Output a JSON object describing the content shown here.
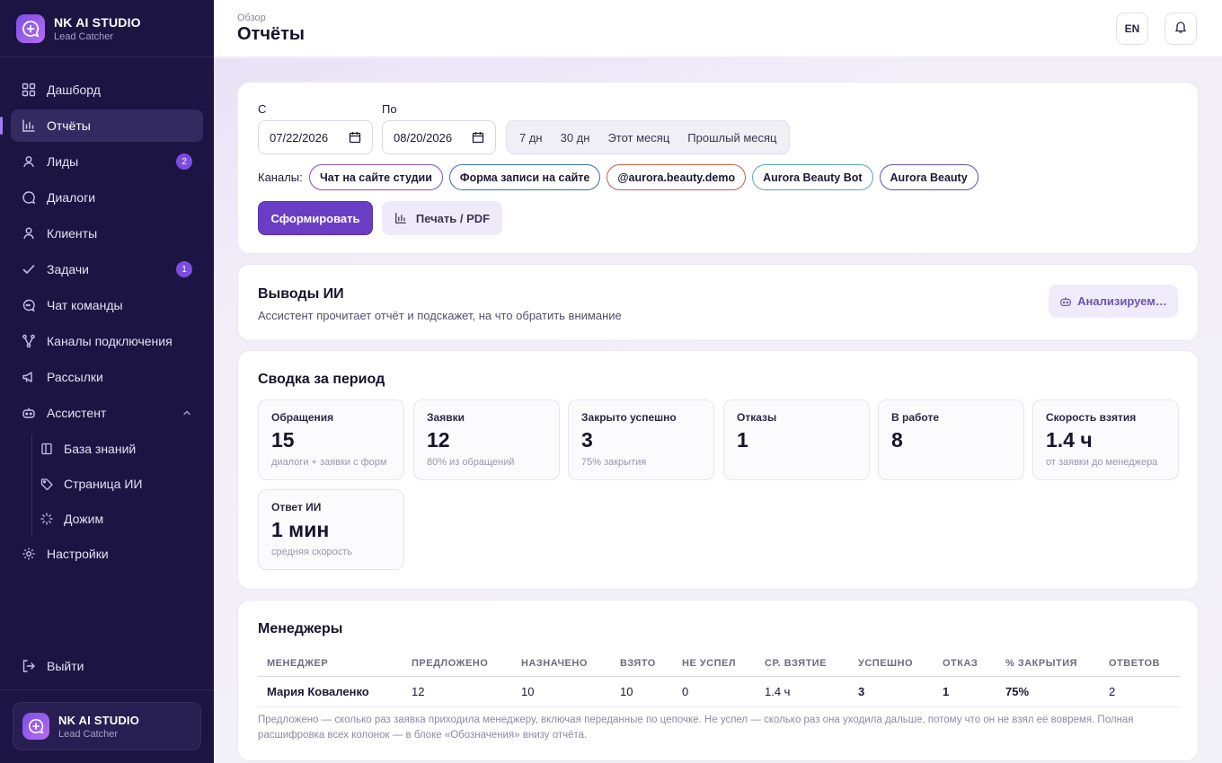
{
  "app": {
    "name": "NK AI STUDIO",
    "subtitle": "Lead Catcher"
  },
  "sidebar": {
    "items": [
      {
        "label": "Дашборд",
        "icon": "grid-icon"
      },
      {
        "label": "Отчёты",
        "icon": "bar-chart-icon",
        "active": true
      },
      {
        "label": "Лиды",
        "icon": "user-icon",
        "badge": "2"
      },
      {
        "label": "Диалоги",
        "icon": "chat-bubble-icon"
      },
      {
        "label": "Клиенты",
        "icon": "person-icon"
      },
      {
        "label": "Задачи",
        "icon": "check-icon",
        "badge": "1"
      },
      {
        "label": "Чат команды",
        "icon": "team-chat-icon"
      },
      {
        "label": "Каналы подключения",
        "icon": "branch-icon"
      },
      {
        "label": "Рассылки",
        "icon": "megaphone-icon"
      },
      {
        "label": "Ассистент",
        "icon": "robot-icon",
        "expanded": true
      }
    ],
    "assistant_sub": [
      {
        "label": "База знаний",
        "icon": "book-icon"
      },
      {
        "label": "Страница ИИ",
        "icon": "tag-icon"
      },
      {
        "label": "Дожим",
        "icon": "spinner-icon"
      }
    ],
    "settings": {
      "label": "Настройки",
      "icon": "gear-icon"
    },
    "logout": {
      "label": "Выйти",
      "icon": "logout-icon"
    },
    "user": {
      "name": "NK AI STUDIO",
      "subtitle": "Lead Catcher"
    }
  },
  "header": {
    "breadcrumb": "Обзор",
    "title": "Отчёты",
    "lang": "EN"
  },
  "filters": {
    "from_label": "С",
    "from_value": "07/22/2026",
    "to_label": "По",
    "to_value": "08/20/2026",
    "presets": [
      "7 дн",
      "30 дн",
      "Этот месяц",
      "Прошлый месяц"
    ],
    "channels_label": "Каналы:",
    "channels": [
      {
        "label": "Чат на сайте студии",
        "color": "#8a4fb3"
      },
      {
        "label": "Форма записи на сайте",
        "color": "#3b6fa8"
      },
      {
        "label": "@aurora.beauty.demo",
        "color": "#c2604e"
      },
      {
        "label": "Aurora Beauty Bot",
        "color": "#5aa7b5"
      },
      {
        "label": "Aurora Beauty",
        "color": "#6b4fb0"
      }
    ],
    "generate_label": "Сформировать",
    "print_label": "Печать / PDF"
  },
  "ai": {
    "title": "Выводы ИИ",
    "description": "Ассистент прочитает отчёт и подскажет, на что обратить внимание",
    "button_label": "Анализируем…"
  },
  "summary": {
    "title": "Сводка за период",
    "stats": [
      {
        "label": "Обращения",
        "value": "15",
        "sub": "диалоги + заявки с форм"
      },
      {
        "label": "Заявки",
        "value": "12",
        "sub": "80% из обращений"
      },
      {
        "label": "Закрыто успешно",
        "value": "3",
        "sub": "75% закрытия"
      },
      {
        "label": "Отказы",
        "value": "1",
        "sub": ""
      },
      {
        "label": "В работе",
        "value": "8",
        "sub": ""
      },
      {
        "label": "Скорость взятия",
        "value": "1.4 ч",
        "sub": "от заявки до менеджера"
      },
      {
        "label": "Ответ ИИ",
        "value": "1 мин",
        "sub": "средняя скорость"
      }
    ]
  },
  "managers": {
    "title": "Менеджеры",
    "columns": [
      "МЕНЕДЖЕР",
      "ПРЕДЛОЖЕНО",
      "НАЗНАЧЕНО",
      "ВЗЯТО",
      "НЕ УСПЕЛ",
      "СР. ВЗЯТИЕ",
      "УСПЕШНО",
      "ОТКАЗ",
      "% ЗАКРЫТИЯ",
      "ОТВЕТОВ"
    ],
    "rows": [
      [
        "Мария Коваленко",
        "12",
        "10",
        "10",
        "0",
        "1.4 ч",
        "3",
        "1",
        "75%",
        "2"
      ]
    ],
    "note": "Предложено — сколько раз заявка приходила менеджеру, включая переданные по цепочке. Не успел — сколько раз она уходила дальше, потому что он не взял её вовремя. Полная расшифровка всех колонок — в блоке «Обозначения» внизу отчёта."
  },
  "colors": {
    "sidebar_bg": "#1c1442",
    "accent": "#6a3ec4",
    "badge": "#7a4de0"
  }
}
